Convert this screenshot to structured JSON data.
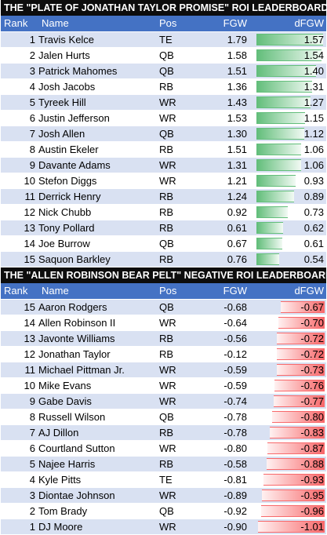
{
  "positive": {
    "title": "THE \"PLATE OF JONATHAN TAYLOR PROMISE\" ROI LEADERBOARD",
    "headers": {
      "rank": "Rank",
      "name": "Name",
      "pos": "Pos",
      "fgw": "FGW",
      "dfgw": "dFGW"
    },
    "bar_color": "#63be7b",
    "rows": [
      {
        "rank": "1",
        "name": "Travis Kelce",
        "pos": "TE",
        "fgw": "1.79",
        "dfgw": "1.57"
      },
      {
        "rank": "2",
        "name": "Jalen Hurts",
        "pos": "QB",
        "fgw": "1.58",
        "dfgw": "1.54"
      },
      {
        "rank": "3",
        "name": "Patrick Mahomes",
        "pos": "QB",
        "fgw": "1.51",
        "dfgw": "1.40"
      },
      {
        "rank": "4",
        "name": "Josh Jacobs",
        "pos": "RB",
        "fgw": "1.36",
        "dfgw": "1.31"
      },
      {
        "rank": "5",
        "name": "Tyreek Hill",
        "pos": "WR",
        "fgw": "1.43",
        "dfgw": "1.27"
      },
      {
        "rank": "6",
        "name": "Justin Jefferson",
        "pos": "WR",
        "fgw": "1.53",
        "dfgw": "1.15"
      },
      {
        "rank": "7",
        "name": "Josh Allen",
        "pos": "QB",
        "fgw": "1.30",
        "dfgw": "1.12"
      },
      {
        "rank": "8",
        "name": "Austin Ekeler",
        "pos": "RB",
        "fgw": "1.51",
        "dfgw": "1.06"
      },
      {
        "rank": "9",
        "name": "Davante Adams",
        "pos": "WR",
        "fgw": "1.31",
        "dfgw": "1.06"
      },
      {
        "rank": "10",
        "name": "Stefon Diggs",
        "pos": "WR",
        "fgw": "1.21",
        "dfgw": "0.93"
      },
      {
        "rank": "11",
        "name": "Derrick Henry",
        "pos": "RB",
        "fgw": "1.24",
        "dfgw": "0.89"
      },
      {
        "rank": "12",
        "name": "Nick Chubb",
        "pos": "RB",
        "fgw": "0.92",
        "dfgw": "0.73"
      },
      {
        "rank": "13",
        "name": "Tony Pollard",
        "pos": "RB",
        "fgw": "0.61",
        "dfgw": "0.62"
      },
      {
        "rank": "14",
        "name": "Joe Burrow",
        "pos": "QB",
        "fgw": "0.67",
        "dfgw": "0.61"
      },
      {
        "rank": "15",
        "name": "Saquon Barkley",
        "pos": "RB",
        "fgw": "0.76",
        "dfgw": "0.54"
      }
    ]
  },
  "negative": {
    "title": "THE \"ALLEN ROBINSON BEAR PELT\" NEGATIVE ROI LEADERBOARD",
    "headers": {
      "rank": "Rank",
      "name": "Name",
      "pos": "Pos",
      "fgw": "FGW",
      "dfgw": "dFGW"
    },
    "bar_color": "#f8696b",
    "rows": [
      {
        "rank": "15",
        "name": "Aaron Rodgers",
        "pos": "QB",
        "fgw": "-0.68",
        "dfgw": "-0.67"
      },
      {
        "rank": "14",
        "name": "Allen Robinson II",
        "pos": "WR",
        "fgw": "-0.64",
        "dfgw": "-0.70"
      },
      {
        "rank": "13",
        "name": "Javonte Williams",
        "pos": "RB",
        "fgw": "-0.56",
        "dfgw": "-0.72"
      },
      {
        "rank": "12",
        "name": "Jonathan Taylor",
        "pos": "RB",
        "fgw": "-0.12",
        "dfgw": "-0.72"
      },
      {
        "rank": "11",
        "name": "Michael Pittman Jr.",
        "pos": "WR",
        "fgw": "-0.59",
        "dfgw": "-0.73"
      },
      {
        "rank": "10",
        "name": "Mike Evans",
        "pos": "WR",
        "fgw": "-0.59",
        "dfgw": "-0.76"
      },
      {
        "rank": "9",
        "name": "Gabe Davis",
        "pos": "WR",
        "fgw": "-0.74",
        "dfgw": "-0.77"
      },
      {
        "rank": "8",
        "name": "Russell Wilson",
        "pos": "QB",
        "fgw": "-0.78",
        "dfgw": "-0.80"
      },
      {
        "rank": "7",
        "name": "AJ Dillon",
        "pos": "RB",
        "fgw": "-0.78",
        "dfgw": "-0.83"
      },
      {
        "rank": "6",
        "name": "Courtland Sutton",
        "pos": "WR",
        "fgw": "-0.80",
        "dfgw": "-0.87"
      },
      {
        "rank": "5",
        "name": "Najee Harris",
        "pos": "RB",
        "fgw": "-0.58",
        "dfgw": "-0.88"
      },
      {
        "rank": "4",
        "name": "Kyle Pitts",
        "pos": "TE",
        "fgw": "-0.81",
        "dfgw": "-0.93"
      },
      {
        "rank": "3",
        "name": "Diontae Johnson",
        "pos": "WR",
        "fgw": "-0.89",
        "dfgw": "-0.95"
      },
      {
        "rank": "2",
        "name": "Tom Brady",
        "pos": "QB",
        "fgw": "-0.92",
        "dfgw": "-0.96"
      },
      {
        "rank": "1",
        "name": "DJ Moore",
        "pos": "WR",
        "fgw": "-0.90",
        "dfgw": "-1.01"
      }
    ]
  }
}
